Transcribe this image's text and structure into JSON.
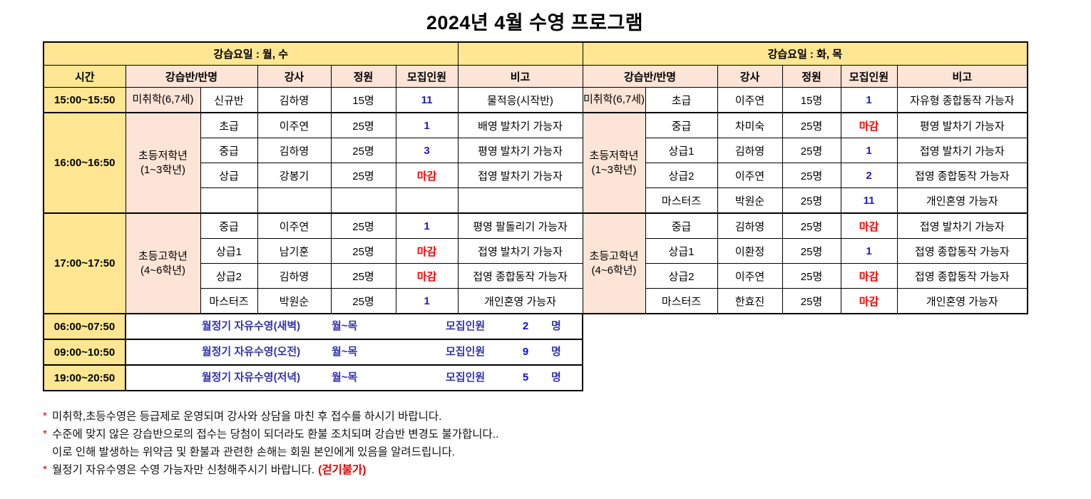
{
  "title": "2024년 4월 수영 프로그램",
  "colors": {
    "header_yellow": "#FFE692",
    "header_peach": "#FCE4D6",
    "recruit_open_blue": "#1C1CC9",
    "recruit_closed_red": "#FE0000",
    "free_swim_blue": "#3434B0",
    "free_count_blue": "#0F0FD0",
    "footnote_red": "#E60000"
  },
  "tables": {
    "left": {
      "day_label": "강습요일 :  월, 수",
      "headers": [
        "시간",
        "강습반/반명",
        "강사",
        "정원",
        "모집인원",
        "비고"
      ],
      "groups": [
        {
          "time": "15:00~15:50",
          "name": "미취학(6,7세)",
          "name2": "",
          "rows": [
            {
              "class": "신규반",
              "instructor": "김하영",
              "capacity": "15명",
              "recruit": "11",
              "status": "open",
              "note": "물적응(시작반)"
            }
          ]
        },
        {
          "time": "16:00~16:50",
          "name": "초등저학년",
          "name2": "(1~3학년)",
          "rows": [
            {
              "class": "초급",
              "instructor": "이주연",
              "capacity": "25명",
              "recruit": "1",
              "status": "open",
              "note": "배영 발차기 가능자"
            },
            {
              "class": "중급",
              "instructor": "김하영",
              "capacity": "25명",
              "recruit": "3",
              "status": "open",
              "note": "평영 발차기 가능자"
            },
            {
              "class": "상급",
              "instructor": "강봉기",
              "capacity": "25명",
              "recruit": "마감",
              "status": "closed",
              "note": "접영 발차기 가능자"
            },
            {
              "class": "",
              "instructor": "",
              "capacity": "",
              "recruit": "",
              "status": "",
              "note": ""
            }
          ]
        },
        {
          "time": "17:00~17:50",
          "name": "초등고학년",
          "name2": "(4~6학년)",
          "rows": [
            {
              "class": "중급",
              "instructor": "이주연",
              "capacity": "25명",
              "recruit": "1",
              "status": "open",
              "note": "평영 팔돌리기 가능자",
              "hb": true
            },
            {
              "class": "상급1",
              "instructor": "남기훈",
              "capacity": "25명",
              "recruit": "마감",
              "status": "closed",
              "note": "접영 발차기 가능자",
              "hb": true
            },
            {
              "class": "상급2",
              "instructor": "김하영",
              "capacity": "25명",
              "recruit": "마감",
              "status": "closed",
              "note": "접영 종합동작 가능자"
            },
            {
              "class": "마스터즈",
              "instructor": "박원순",
              "capacity": "25명",
              "recruit": "1",
              "status": "open",
              "note": "개인혼영 가능자"
            }
          ]
        }
      ]
    },
    "right": {
      "day_label": "강습요일 : 화, 목",
      "headers": [
        "강습반/반명",
        "강사",
        "정원",
        "모집인원",
        "비고"
      ],
      "groups": [
        {
          "name": "미취학(6,7세)",
          "name2": "",
          "rows": [
            {
              "class": "초급",
              "instructor": "이주연",
              "capacity": "15명",
              "recruit": "1",
              "status": "open",
              "note": "자유형 종합동작 가능자"
            }
          ]
        },
        {
          "name": "초등저학년",
          "name2": "(1~3학년)",
          "rows": [
            {
              "class": "중급",
              "instructor": "차미숙",
              "capacity": "25명",
              "recruit": "마감",
              "status": "closed",
              "note": "평영 발차기 가능자"
            },
            {
              "class": "상급1",
              "instructor": "김하영",
              "capacity": "25명",
              "recruit": "1",
              "status": "open",
              "note": "접영 발차기 가능자"
            },
            {
              "class": "상급2",
              "instructor": "이주연",
              "capacity": "25명",
              "recruit": "2",
              "status": "open",
              "note": "접영 종합동작 가능자"
            },
            {
              "class": "마스터즈",
              "instructor": "박원순",
              "capacity": "25명",
              "recruit": "11",
              "status": "open",
              "note": "개인혼영 가능자"
            }
          ]
        },
        {
          "name": "초등고학년",
          "name2": "(4~6학년)",
          "rows": [
            {
              "class": "중급",
              "instructor": "김하영",
              "capacity": "25명",
              "recruit": "마감",
              "status": "closed",
              "note": "접영 발차기 가능자"
            },
            {
              "class": "상급1",
              "instructor": "이환정",
              "capacity": "25명",
              "recruit": "1",
              "status": "open",
              "note": "접영 종합동작 가능자"
            },
            {
              "class": "상급2",
              "instructor": "이주연",
              "capacity": "25명",
              "recruit": "마감",
              "status": "closed",
              "note": "접영 종합동작 가능자"
            },
            {
              "class": "마스터즈",
              "instructor": "한효진",
              "capacity": "25명",
              "recruit": "마감",
              "status": "closed",
              "note": "개인혼영 가능자"
            }
          ]
        }
      ]
    }
  },
  "free_swim": [
    {
      "time": "06:00~07:50",
      "name": "월정기 자유수영(새벽)",
      "days": "월~목",
      "recruit_label": "모집인원",
      "count": "2",
      "unit": "명"
    },
    {
      "time": "09:00~10:50",
      "name": "월정기 자유수영(오전)",
      "days": "월~목",
      "recruit_label": "모집인원",
      "count": "9",
      "unit": "명"
    },
    {
      "time": "19:00~20:50",
      "name": "월정기 자유수영(저녁)",
      "days": "월~목",
      "recruit_label": "모집인원",
      "count": "5",
      "unit": "명"
    }
  ],
  "footnotes": [
    {
      "bullet": "*",
      "text": "미취학,초등수영은 등급제로 운영되며 강사와 상담을 마친 후 접수를 하시기 바랍니다."
    },
    {
      "bullet": "*",
      "text": "수준에 맞지 않은 강습반으로의 접수는 당첨이 되더라도 환불 조치되며 강습반 변경도 불가합니다.."
    },
    {
      "bullet": "",
      "text": "이로 인해 발생하는 위약금 및 환불과 관련한 손해는 회원 본인에게 있음을 알려드립니다."
    },
    {
      "bullet": "*",
      "text": "월정기 자유수영은 수영 가능자만 신청해주시기 바랍니다.",
      "suffix": "(걷기불가)"
    }
  ]
}
